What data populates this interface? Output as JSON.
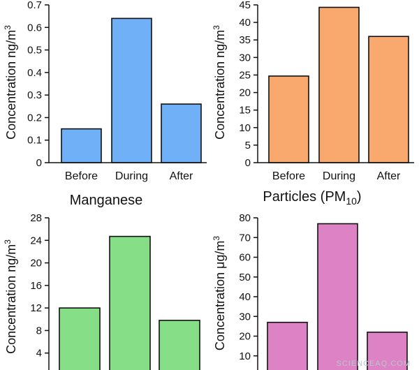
{
  "chart_data": [
    {
      "type": "bar",
      "title": "",
      "categories": [
        "Before",
        "During",
        "After"
      ],
      "values": [
        0.15,
        0.64,
        0.26
      ],
      "ylabel": "Concentration ng/m³",
      "ylim": [
        0,
        0.7
      ],
      "yticks": [
        "0",
        "0.1",
        "0.2",
        "0.3",
        "0.4",
        "0.5",
        "0.6",
        "0.7"
      ],
      "bar_color": "#6fb0f7"
    },
    {
      "type": "bar",
      "title": "",
      "categories": [
        "Before",
        "During",
        "After"
      ],
      "values": [
        24.7,
        44.3,
        36.0
      ],
      "ylabel": "Concentration ng/m³",
      "ylim": [
        0,
        45
      ],
      "yticks": [
        "0",
        "5",
        "10",
        "15",
        "20",
        "25",
        "30",
        "35",
        "40",
        "45"
      ],
      "bar_color": "#f9a86e"
    },
    {
      "type": "bar",
      "title": "Manganese",
      "categories": [
        "Before",
        "During",
        "After"
      ],
      "values": [
        12.0,
        24.7,
        9.8
      ],
      "ylabel": "Concentration ng/m³",
      "ylim": [
        0,
        28
      ],
      "yticks": [
        "4",
        "8",
        "12",
        "16",
        "20",
        "24",
        "28"
      ],
      "bar_color": "#86de86"
    },
    {
      "type": "bar",
      "title": "Particles (PM10)",
      "categories": [
        "Before",
        "During",
        "After"
      ],
      "values": [
        27,
        77,
        22
      ],
      "ylabel": "Concentration μg/m³",
      "ylim": [
        0,
        80
      ],
      "yticks": [
        "10",
        "20",
        "30",
        "40",
        "50",
        "60",
        "70",
        "80"
      ],
      "bar_color": "#de82c6"
    }
  ],
  "watermark": "SCIENCEAQ.COM"
}
